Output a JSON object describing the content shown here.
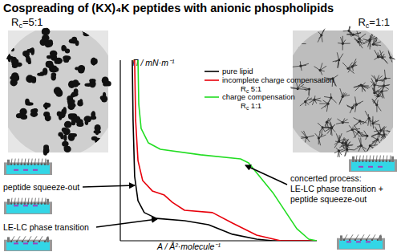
{
  "chart_data": {
    "type": "line",
    "title": "Cospreading of (KX)₄K peptides with anionic phospholipids",
    "x_label": "A / Å²·molecule⁻¹",
    "y_label": "Π / mN·m⁻¹",
    "xlim": [
      0,
      100
    ],
    "ylim": [
      0,
      100
    ],
    "xticks": [],
    "yticks": [],
    "tick_labels": false,
    "grid": false,
    "legend": "upper right",
    "image_labels": [
      "Rc=5:1",
      "Rc=1:1"
    ],
    "annotations": [
      [
        "peptide squeeze-out"
      ],
      [
        "LE-LC phase transition"
      ],
      [
        "concerted process:",
        "LE-LC phase transition +",
        "peptide squeeze-out"
      ]
    ],
    "series": [
      {
        "name": "pure lipid",
        "color": "#000000",
        "x": [
          6.1,
          6.5,
          7.3,
          9,
          12.2,
          18.4,
          32.7,
          44.9,
          57.1,
          69.4,
          77.6,
          100
        ],
        "values": [
          100,
          66.7,
          35.6,
          22.2,
          15.6,
          12.4,
          11.1,
          8.9,
          3.6,
          0.9,
          0,
          0
        ]
      },
      {
        "name": "incomplete charge compensation Rc 5:1",
        "color": "#e8000b",
        "x": [
          7.3,
          7.8,
          9,
          11.4,
          16.3,
          22.4,
          26.5,
          32.7,
          46.9,
          57.1,
          69.4,
          81.6,
          100
        ],
        "values": [
          100,
          66.7,
          44.4,
          33.3,
          27.6,
          25.3,
          21.3,
          16.9,
          15.6,
          9.8,
          3.1,
          0,
          0
        ]
      },
      {
        "name": "charge compensation Rc 1:1",
        "color": "#22dd22",
        "x": [
          9,
          9.4,
          10.6,
          14.3,
          20.4,
          40.8,
          61.2,
          65.3,
          77.6,
          89.8,
          95.9,
          100
        ],
        "values": [
          100,
          75.6,
          62.2,
          54.2,
          50.7,
          47.6,
          45.3,
          43.1,
          26.7,
          6.7,
          0.9,
          0
        ]
      }
    ]
  }
}
